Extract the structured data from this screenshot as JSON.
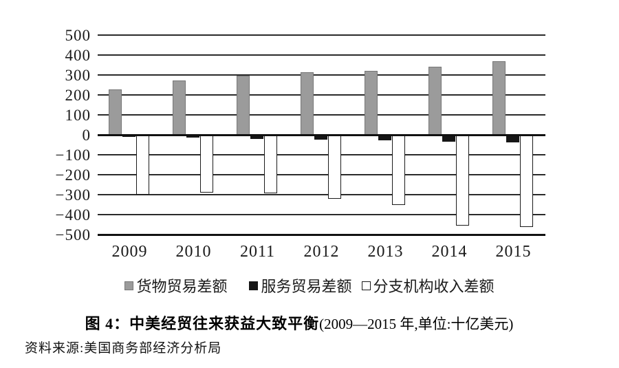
{
  "figure": {
    "caption_bold": "图 4：中美经贸往来获益大致平衡",
    "caption_rest": "(2009—2015 年,单位:十亿美元)",
    "source": "资料来源:美国商务部经济分析局"
  },
  "chart_data": {
    "type": "bar",
    "title": "图 4：中美经贸往来获益大致平衡",
    "subtitle": "2009—2015 年,单位:十亿美元",
    "categories": [
      "2009",
      "2010",
      "2011",
      "2012",
      "2013",
      "2014",
      "2015"
    ],
    "series": [
      {
        "name": "货物贸易差额",
        "key": "goods-trade-balance",
        "color": "#9b9b9b",
        "border_color": "#767676",
        "values": [
          228,
          273,
          297,
          315,
          321,
          341,
          368
        ]
      },
      {
        "name": "服务贸易差额",
        "key": "services-trade-balance",
        "color": "#161616",
        "border_color": "#161616",
        "values": [
          -10,
          -15,
          -22,
          -25,
          -28,
          -34,
          -38
        ]
      },
      {
        "name": "分支机构收入差额",
        "key": "branch-income-balance",
        "color": "#ffffff",
        "border_color": "#1a1a1a",
        "values": [
          -300,
          -288,
          -293,
          -322,
          -352,
          -455,
          -461
        ]
      }
    ],
    "ylim": [
      -500,
      500
    ],
    "ytick_step": 100,
    "yticks": [
      500,
      400,
      300,
      200,
      100,
      0,
      -100,
      -200,
      -300,
      -400,
      -500
    ],
    "ytick_labels": [
      "500",
      "400",
      "300",
      "200",
      "100",
      "0",
      "−100",
      "−200",
      "−300",
      "−400",
      "−500"
    ],
    "grid": true,
    "legend_position": "bottom",
    "axis_color": "#111111",
    "gridline_color": "#2a2a2a"
  }
}
